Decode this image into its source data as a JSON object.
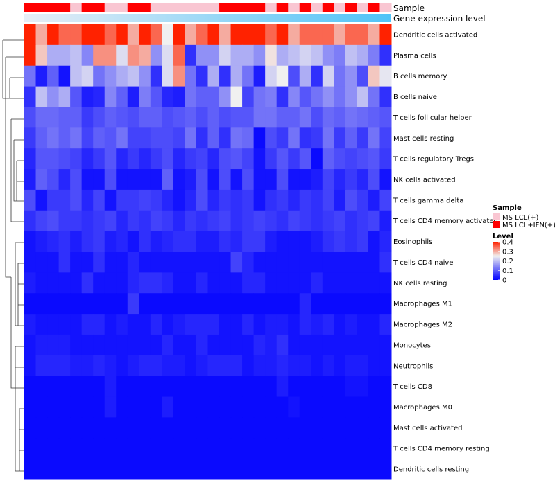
{
  "chart_data": {
    "type": "heatmap",
    "title": "",
    "annotation_labels": {
      "sample": "Sample",
      "gene_expression": "Gene expression level"
    },
    "row_labels": [
      "Dendritic cells activated",
      "Plasma cells",
      "B cells memory",
      "B cells naive",
      "T cells follicular helper",
      "Mast cells resting",
      "T cells regulatory  Tregs",
      "NK cells activated",
      "T cells gamma delta",
      "T cells CD4 memory activated",
      "Eosinophils",
      "T cells CD4 naive",
      "NK cells resting",
      "Macrophages M1",
      "Macrophages M2",
      "Monocytes",
      "Neutrophils",
      "T cells CD8",
      "Macrophages M0",
      "Mast cells activated",
      "T cells CD4 memory resting",
      "Dendritic cells resting"
    ],
    "sample_groups": [
      "MS LCL+IFN(+)",
      "MS LCL+IFN(+)",
      "MS LCL+IFN(+)",
      "MS LCL+IFN(+)",
      "MS LCL(+)",
      "MS LCL+IFN(+)",
      "MS LCL+IFN(+)",
      "MS LCL(+)",
      "MS LCL(+)",
      "MS LCL+IFN(+)",
      "MS LCL+IFN(+)",
      "MS LCL(+)",
      "MS LCL(+)",
      "MS LCL(+)",
      "MS LCL(+)",
      "MS LCL(+)",
      "MS LCL(+)",
      "MS LCL+IFN(+)",
      "MS LCL+IFN(+)",
      "MS LCL+IFN(+)",
      "MS LCL+IFN(+)",
      "MS LCL(+)",
      "MS LCL+IFN(+)",
      "MS LCL(+)",
      "MS LCL+IFN(+)",
      "MS LCL(+)",
      "MS LCL+IFN(+)",
      "MS LCL(+)",
      "MS LCL+IFN(+)",
      "MS LCL(+)",
      "MS LCL+IFN(+)",
      "MS LCL(+)"
    ],
    "expression_gradient": [
      "#e8eef6",
      "#4fc3f7"
    ],
    "values": [
      [
        0.4,
        0.3,
        0.4,
        0.35,
        0.35,
        0.4,
        0.4,
        0.35,
        0.4,
        0.3,
        0.4,
        0.35,
        0.25,
        0.4,
        0.3,
        0.35,
        0.4,
        0.3,
        0.4,
        0.4,
        0.4,
        0.35,
        0.4,
        0.3,
        0.35,
        0.35,
        0.35,
        0.3,
        0.35,
        0.35,
        0.3,
        0.4
      ],
      [
        0.4,
        0.28,
        0.18,
        0.18,
        0.2,
        0.14,
        0.32,
        0.32,
        0.23,
        0.32,
        0.3,
        0.15,
        0.23,
        0.35,
        0.05,
        0.15,
        0.15,
        0.22,
        0.18,
        0.18,
        0.15,
        0.26,
        0.18,
        0.2,
        0.22,
        0.2,
        0.15,
        0.13,
        0.2,
        0.18,
        0.13,
        0.05
      ],
      [
        0.12,
        0.03,
        0.1,
        0.02,
        0.2,
        0.22,
        0.12,
        0.15,
        0.18,
        0.2,
        0.15,
        0.05,
        0.23,
        0.32,
        0.12,
        0.05,
        0.18,
        0.05,
        0.18,
        0.12,
        0.03,
        0.22,
        0.25,
        0.08,
        0.18,
        0.05,
        0.22,
        0.12,
        0.15,
        0.08,
        0.28,
        0.24
      ],
      [
        0.05,
        0.2,
        0.15,
        0.18,
        0.09,
        0.03,
        0.04,
        0.14,
        0.1,
        0.03,
        0.13,
        0.09,
        0.04,
        0.03,
        0.12,
        0.1,
        0.1,
        0.15,
        0.25,
        0.07,
        0.12,
        0.13,
        0.05,
        0.14,
        0.09,
        0.12,
        0.15,
        0.12,
        0.15,
        0.2,
        0.12,
        0.05
      ],
      [
        0.08,
        0.11,
        0.11,
        0.1,
        0.1,
        0.06,
        0.08,
        0.1,
        0.09,
        0.08,
        0.1,
        0.1,
        0.08,
        0.09,
        0.1,
        0.08,
        0.1,
        0.08,
        0.09,
        0.09,
        0.12,
        0.12,
        0.1,
        0.1,
        0.12,
        0.08,
        0.11,
        0.1,
        0.12,
        0.11,
        0.1,
        0.09
      ],
      [
        0.06,
        0.1,
        0.12,
        0.1,
        0.12,
        0.07,
        0.1,
        0.09,
        0.12,
        0.07,
        0.07,
        0.08,
        0.08,
        0.07,
        0.12,
        0.05,
        0.1,
        0.05,
        0.12,
        0.11,
        0.01,
        0.08,
        0.06,
        0.12,
        0.05,
        0.06,
        0.12,
        0.06,
        0.1,
        0.06,
        0.12,
        0.07
      ],
      [
        0.04,
        0.09,
        0.09,
        0.08,
        0.07,
        0.04,
        0.06,
        0.09,
        0.04,
        0.06,
        0.04,
        0.06,
        0.08,
        0.04,
        0.06,
        0.07,
        0.04,
        0.08,
        0.09,
        0.07,
        0.02,
        0.06,
        0.09,
        0.06,
        0.09,
        0.01,
        0.1,
        0.08,
        0.07,
        0.08,
        0.09,
        0.06
      ],
      [
        0.03,
        0.1,
        0.08,
        0.04,
        0.08,
        0.02,
        0.02,
        0.08,
        0.02,
        0.02,
        0.02,
        0.02,
        0.1,
        0.02,
        0.03,
        0.08,
        0.02,
        0.08,
        0.02,
        0.08,
        0.02,
        0.02,
        0.08,
        0.02,
        0.02,
        0.03,
        0.07,
        0.04,
        0.06,
        0.04,
        0.08,
        0.02
      ],
      [
        0.08,
        0.02,
        0.06,
        0.06,
        0.08,
        0.04,
        0.07,
        0.02,
        0.06,
        0.06,
        0.07,
        0.06,
        0.04,
        0.02,
        0.04,
        0.08,
        0.04,
        0.06,
        0.05,
        0.06,
        0.02,
        0.05,
        0.06,
        0.04,
        0.06,
        0.05,
        0.07,
        0.03,
        0.08,
        0.06,
        0.03,
        0.07
      ],
      [
        0.05,
        0.07,
        0.08,
        0.06,
        0.06,
        0.05,
        0.06,
        0.07,
        0.04,
        0.06,
        0.05,
        0.07,
        0.06,
        0.04,
        0.06,
        0.05,
        0.06,
        0.07,
        0.05,
        0.06,
        0.07,
        0.06,
        0.05,
        0.07,
        0.06,
        0.05,
        0.06,
        0.07,
        0.05,
        0.06,
        0.07,
        0.03
      ],
      [
        0.02,
        0.03,
        0.04,
        0.05,
        0.03,
        0.05,
        0.06,
        0.03,
        0.04,
        0.02,
        0.05,
        0.03,
        0.04,
        0.05,
        0.05,
        0.03,
        0.03,
        0.05,
        0.04,
        0.06,
        0.06,
        0.03,
        0.02,
        0.02,
        0.02,
        0.03,
        0.05,
        0.06,
        0.05,
        0.06,
        0.02,
        0.04
      ],
      [
        0.02,
        0.02,
        0.02,
        0.05,
        0.02,
        0.02,
        0.05,
        0.02,
        0.02,
        0.04,
        0.02,
        0.02,
        0.02,
        0.02,
        0.02,
        0.02,
        0.02,
        0.02,
        0.07,
        0.04,
        0.02,
        0.02,
        0.02,
        0.02,
        0.02,
        0.02,
        0.02,
        0.02,
        0.02,
        0.02,
        0.02,
        0.05
      ],
      [
        0.03,
        0.02,
        0.02,
        0.02,
        0.02,
        0.05,
        0.02,
        0.02,
        0.02,
        0.04,
        0.05,
        0.05,
        0.04,
        0.02,
        0.02,
        0.04,
        0.02,
        0.02,
        0.02,
        0.04,
        0.04,
        0.02,
        0.02,
        0.02,
        0.02,
        0.04,
        0.02,
        0.02,
        0.02,
        0.02,
        0.02,
        0.02
      ],
      [
        0.01,
        0.01,
        0.01,
        0.01,
        0.01,
        0.01,
        0.01,
        0.01,
        0.01,
        0.06,
        0.01,
        0.01,
        0.01,
        0.01,
        0.01,
        0.01,
        0.01,
        0.01,
        0.01,
        0.01,
        0.01,
        0.01,
        0.01,
        0.01,
        0.04,
        0.01,
        0.01,
        0.01,
        0.01,
        0.01,
        0.01,
        0.01
      ],
      [
        0.03,
        0.02,
        0.02,
        0.02,
        0.02,
        0.04,
        0.04,
        0.02,
        0.03,
        0.02,
        0.02,
        0.04,
        0.02,
        0.03,
        0.04,
        0.04,
        0.04,
        0.02,
        0.02,
        0.04,
        0.02,
        0.03,
        0.03,
        0.02,
        0.04,
        0.03,
        0.04,
        0.02,
        0.03,
        0.02,
        0.02,
        0.04
      ],
      [
        0.02,
        0.03,
        0.03,
        0.03,
        0.02,
        0.02,
        0.02,
        0.02,
        0.02,
        0.02,
        0.02,
        0.02,
        0.04,
        0.02,
        0.02,
        0.04,
        0.02,
        0.02,
        0.02,
        0.02,
        0.04,
        0.03,
        0.05,
        0.02,
        0.02,
        0.02,
        0.02,
        0.02,
        0.02,
        0.02,
        0.02,
        0.02
      ],
      [
        0.02,
        0.04,
        0.04,
        0.04,
        0.03,
        0.03,
        0.04,
        0.03,
        0.02,
        0.03,
        0.04,
        0.04,
        0.03,
        0.03,
        0.02,
        0.03,
        0.04,
        0.04,
        0.04,
        0.02,
        0.03,
        0.03,
        0.04,
        0.03,
        0.03,
        0.02,
        0.03,
        0.02,
        0.03,
        0.03,
        0.02,
        0.02
      ],
      [
        0.01,
        0.01,
        0.01,
        0.01,
        0.01,
        0.01,
        0.01,
        0.03,
        0.01,
        0.01,
        0.01,
        0.01,
        0.01,
        0.01,
        0.01,
        0.01,
        0.01,
        0.01,
        0.01,
        0.01,
        0.01,
        0.01,
        0.03,
        0.01,
        0.01,
        0.01,
        0.01,
        0.01,
        0.02,
        0.02,
        0.01,
        0.01
      ],
      [
        0.01,
        0.01,
        0.01,
        0.01,
        0.01,
        0.01,
        0.01,
        0.03,
        0.01,
        0.01,
        0.01,
        0.01,
        0.03,
        0.01,
        0.01,
        0.01,
        0.01,
        0.01,
        0.01,
        0.01,
        0.01,
        0.01,
        0.01,
        0.02,
        0.01,
        0.01,
        0.01,
        0.01,
        0.01,
        0.01,
        0.01,
        0.01
      ],
      [
        0.01,
        0.01,
        0.01,
        0.01,
        0.01,
        0.01,
        0.01,
        0.01,
        0.01,
        0.01,
        0.01,
        0.01,
        0.01,
        0.01,
        0.01,
        0.01,
        0.01,
        0.01,
        0.01,
        0.01,
        0.01,
        0.01,
        0.01,
        0.01,
        0.01,
        0.01,
        0.01,
        0.01,
        0.01,
        0.01,
        0.01,
        0.01
      ],
      [
        0.01,
        0.01,
        0.01,
        0.01,
        0.01,
        0.01,
        0.01,
        0.01,
        0.01,
        0.01,
        0.01,
        0.01,
        0.01,
        0.01,
        0.01,
        0.01,
        0.01,
        0.01,
        0.01,
        0.01,
        0.01,
        0.01,
        0.01,
        0.01,
        0.01,
        0.01,
        0.01,
        0.01,
        0.01,
        0.01,
        0.01,
        0.01
      ],
      [
        0.01,
        0.01,
        0.01,
        0.01,
        0.01,
        0.01,
        0.01,
        0.01,
        0.01,
        0.01,
        0.01,
        0.01,
        0.01,
        0.01,
        0.01,
        0.01,
        0.01,
        0.01,
        0.01,
        0.01,
        0.01,
        0.01,
        0.01,
        0.01,
        0.01,
        0.01,
        0.01,
        0.01,
        0.01,
        0.01,
        0.01,
        0.01
      ]
    ],
    "color_scale": {
      "min": 0,
      "mid": 0.25,
      "max": 0.4,
      "low_color": "#0000ff",
      "mid_color": "#f0f0f0",
      "high_color": "#ff2200"
    },
    "legend": {
      "sample_title": "Sample",
      "sample_entries": [
        {
          "label": "MS LCL(+)",
          "color": "#f9c6d2"
        },
        {
          "label": "MS LCL+IFN(+)",
          "color": "#ff0000"
        }
      ],
      "level_title": "Level",
      "level_ticks": [
        {
          "value": 0.4,
          "label": "0.4"
        },
        {
          "value": 0.3,
          "label": "0.3"
        },
        {
          "value": 0.2,
          "label": "0.2"
        },
        {
          "value": 0.1,
          "label": "0.1"
        },
        {
          "value": 0,
          "label": "0"
        }
      ],
      "placement": "right"
    }
  }
}
